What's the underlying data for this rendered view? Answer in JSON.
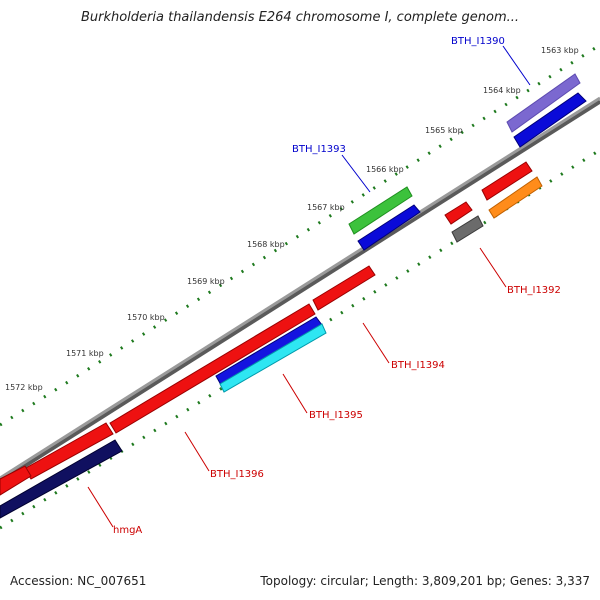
{
  "title": "Burkholderia thailandensis E264 chromosome I, complete genom...",
  "footer": {
    "accession": "Accession: NC_007651",
    "summary": "Topology: circular; Length: 3,809,201 bp; Genes: 3,337"
  },
  "colors": {
    "backbone": "#8c8c8c",
    "tick": "#1e7a1e",
    "label_blue": "#0000cc",
    "label_red": "#cc0000"
  },
  "ticks": [
    {
      "label": "1563 kbp"
    },
    {
      "label": "1564 kbp"
    },
    {
      "label": "1565 kbp"
    },
    {
      "label": "1566 kbp"
    },
    {
      "label": "1567 kbp"
    },
    {
      "label": "1568 kbp"
    },
    {
      "label": "1569 kbp"
    },
    {
      "label": "1570 kbp"
    },
    {
      "label": "1571 kbp"
    },
    {
      "label": "1572 kbp"
    }
  ],
  "gene_labels": [
    {
      "text": "BTH_I1390",
      "color": "blue"
    },
    {
      "text": "BTH_I1393",
      "color": "blue"
    },
    {
      "text": "BTH_I1392",
      "color": "red"
    },
    {
      "text": "BTH_I1394",
      "color": "red"
    },
    {
      "text": "BTH_I1395",
      "color": "red"
    },
    {
      "text": "BTH_I1396",
      "color": "red"
    },
    {
      "text": "hmgA",
      "color": "red"
    }
  ]
}
